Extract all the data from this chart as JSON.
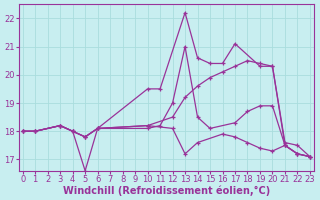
{
  "background_color": "#c8eef0",
  "grid_color": "#aadddd",
  "line_color": "#993399",
  "xlim": [
    -0.3,
    23.3
  ],
  "ylim": [
    16.6,
    22.5
  ],
  "yticks": [
    17,
    18,
    19,
    20,
    21,
    22
  ],
  "xticks": [
    0,
    1,
    2,
    3,
    4,
    5,
    6,
    7,
    8,
    9,
    10,
    11,
    12,
    13,
    14,
    15,
    16,
    17,
    18,
    19,
    20,
    21,
    22,
    23
  ],
  "xlabel": "Windchill (Refroidissement éolien,°C)",
  "xlabel_fontsize": 7.0,
  "tick_fontsize": 6.0,
  "series": [
    {
      "x": [
        0,
        1,
        3,
        4,
        5,
        6,
        10,
        11,
        13,
        14,
        15,
        16,
        17,
        19,
        20,
        21,
        22,
        23
      ],
      "y": [
        18.0,
        18.0,
        18.2,
        18.0,
        16.6,
        18.1,
        19.5,
        19.5,
        22.2,
        20.6,
        20.4,
        20.4,
        21.1,
        20.3,
        20.3,
        17.6,
        17.5,
        17.1
      ]
    },
    {
      "x": [
        0,
        1,
        3,
        4,
        5,
        6,
        10,
        11,
        12,
        13,
        14,
        15,
        17,
        18,
        19,
        20,
        21,
        22,
        23
      ],
      "y": [
        18.0,
        18.0,
        18.2,
        18.0,
        17.8,
        18.1,
        18.1,
        18.2,
        19.0,
        21.0,
        18.5,
        18.1,
        18.3,
        18.7,
        18.9,
        18.9,
        17.5,
        17.2,
        17.1
      ]
    },
    {
      "x": [
        0,
        1,
        3,
        4,
        5,
        6,
        10,
        12,
        13,
        14,
        15,
        16,
        17,
        18,
        19,
        20,
        21,
        22,
        23
      ],
      "y": [
        18.0,
        18.0,
        18.2,
        18.0,
        17.8,
        18.1,
        18.2,
        18.5,
        19.2,
        19.6,
        19.9,
        20.1,
        20.3,
        20.5,
        20.4,
        20.3,
        17.5,
        17.2,
        17.1
      ]
    },
    {
      "x": [
        0,
        1,
        3,
        4,
        5,
        6,
        10,
        12,
        13,
        14,
        16,
        17,
        18,
        19,
        20,
        21,
        22,
        23
      ],
      "y": [
        18.0,
        18.0,
        18.2,
        18.0,
        17.8,
        18.1,
        18.2,
        18.1,
        17.2,
        17.6,
        17.9,
        17.8,
        17.6,
        17.4,
        17.3,
        17.5,
        17.2,
        17.1
      ]
    }
  ]
}
